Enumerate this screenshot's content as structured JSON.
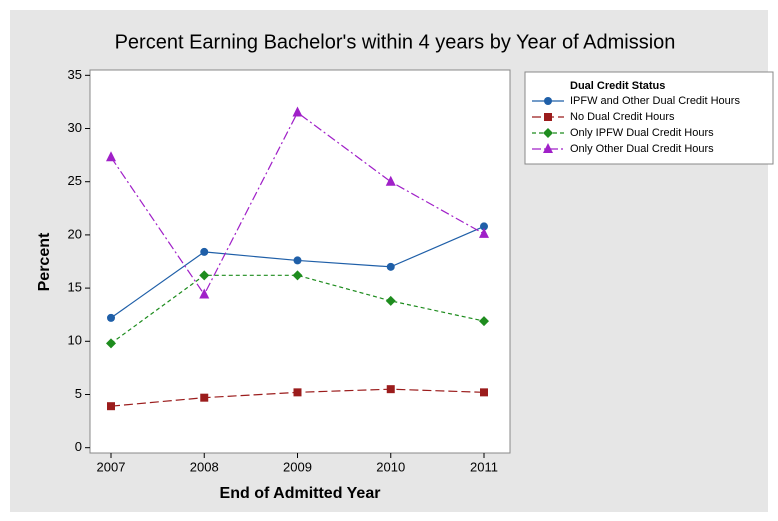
{
  "chart_data": {
    "type": "line",
    "title": "Percent Earning Bachelor's within 4 years by Year of Admission",
    "x_label": "End of Admitted Year",
    "y_label": "Percent",
    "categories": [
      "2007",
      "2008",
      "2009",
      "2010",
      "2011"
    ],
    "legend_title": "Dual Credit Status",
    "legend_position": "right",
    "ylim": [
      -0.5,
      35.5
    ],
    "yticks": [
      0,
      5,
      10,
      15,
      20,
      25,
      30,
      35
    ],
    "series": [
      {
        "name": "IPFW and Other Dual Credit Hours",
        "color": "#1f5fa8",
        "marker": "circle",
        "dash": "solid",
        "values": [
          12.2,
          18.4,
          17.6,
          17.0,
          20.8
        ]
      },
      {
        "name": "No Dual Credit Hours",
        "color": "#9b1c1c",
        "marker": "square",
        "dash": "long",
        "values": [
          3.9,
          4.7,
          5.2,
          5.5,
          5.2
        ]
      },
      {
        "name": "Only IPFW Dual Credit Hours",
        "color": "#1e8c1e",
        "marker": "diamond",
        "dash": "short",
        "values": [
          9.8,
          16.2,
          16.2,
          13.8,
          11.9
        ]
      },
      {
        "name": "Only Other Dual Credit Hours",
        "color": "#a020c8",
        "marker": "triangle",
        "dash": "dashdot",
        "values": [
          27.3,
          14.4,
          31.5,
          25.0,
          20.1
        ]
      }
    ]
  }
}
